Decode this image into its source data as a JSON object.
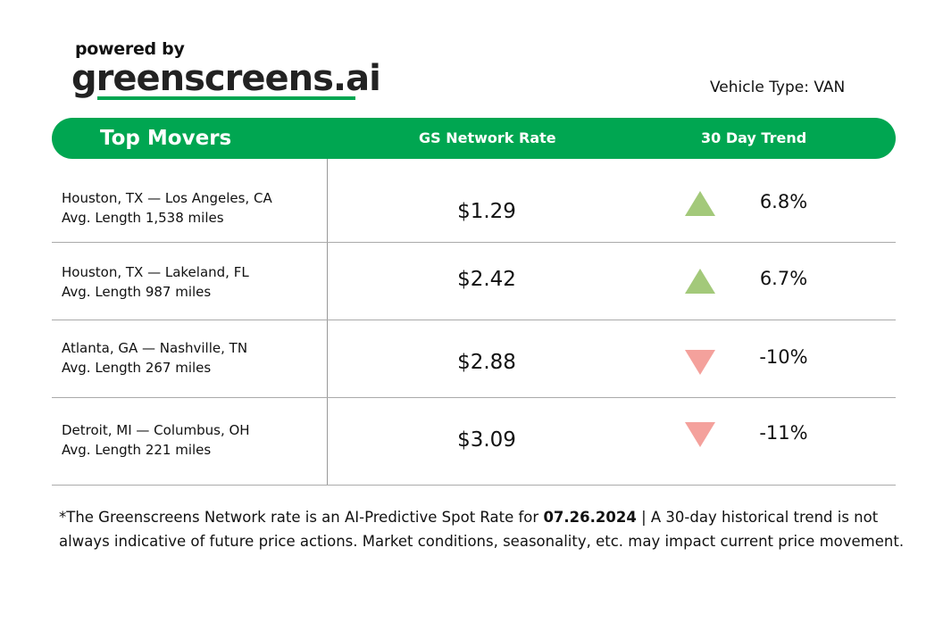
{
  "logo": {
    "powered_by": "powered by",
    "brand": "greenscreens.ai"
  },
  "vehicle_type": "Vehicle Type: VAN",
  "header": {
    "title": "Top Movers",
    "col_rate": "GS Network Rate",
    "col_trend": "30 Day Trend"
  },
  "colors": {
    "brand_green": "#00a651",
    "up": "#a3c97a",
    "down": "#f4a19c"
  },
  "rows": [
    {
      "lane": "Houston, TX — Los Angeles, CA",
      "length": "Avg. Length 1,538 miles",
      "rate": "$1.29",
      "direction": "up",
      "trend": "6.8%"
    },
    {
      "lane": "Houston, TX — Lakeland, FL",
      "length": "Avg. Length 987 miles",
      "rate": "$2.42",
      "direction": "up",
      "trend": "6.7%"
    },
    {
      "lane": "Atlanta, GA — Nashville, TN",
      "length": "Avg. Length 267 miles",
      "rate": "$2.88",
      "direction": "down",
      "trend": "-10%"
    },
    {
      "lane": "Detroit, MI — Columbus, OH",
      "length": "Avg. Length 221 miles",
      "rate": "$3.09",
      "direction": "down",
      "trend": "-11%"
    }
  ],
  "footnote": {
    "before": "*The Greenscreens Network rate is an AI-Predictive Spot Rate for ",
    "date": "07.26.2024",
    "after": " | A 30-day historical trend is not always indicative of future price actions. Market conditions, seasonality, etc. may impact current price movement."
  }
}
